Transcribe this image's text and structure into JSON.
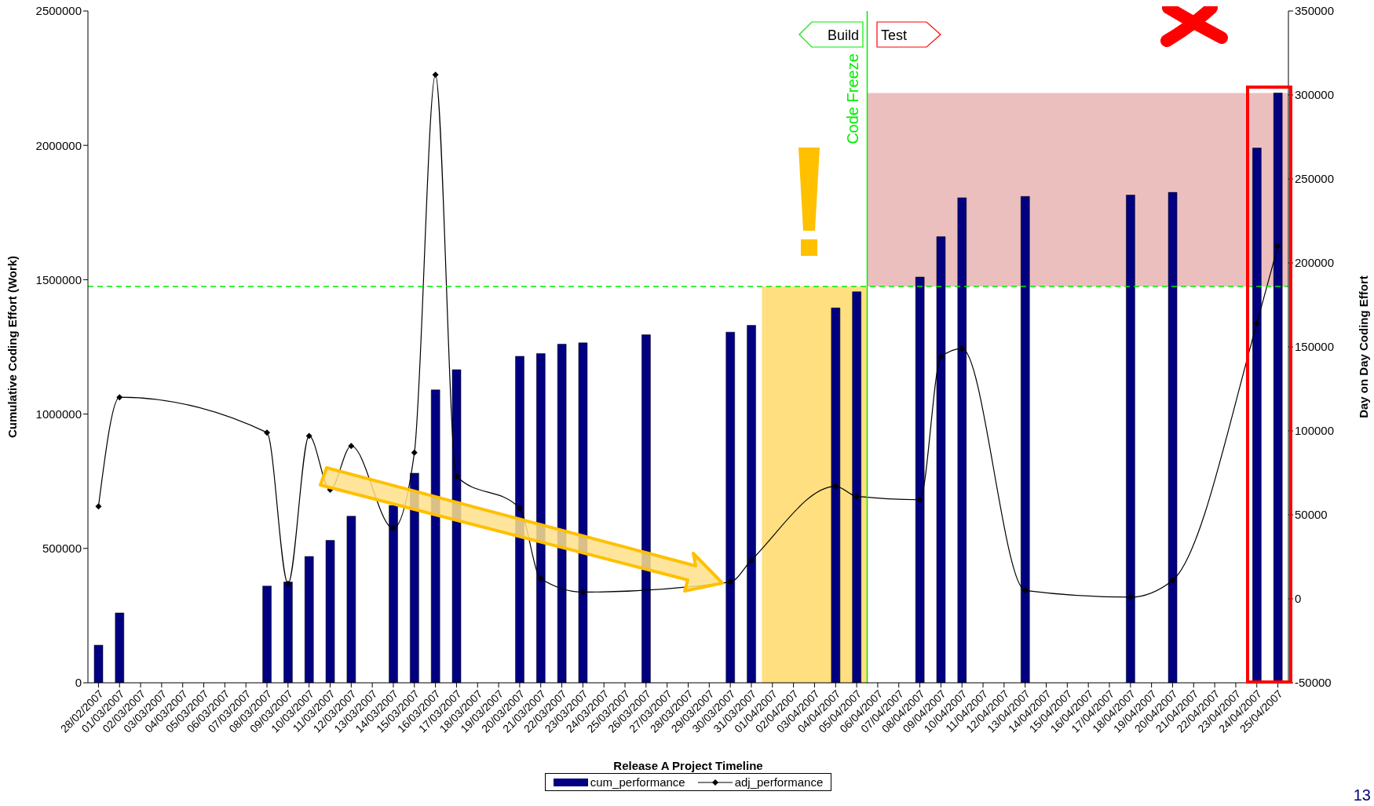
{
  "chart_data": {
    "type": "bar",
    "xlabel": "Release A Project Timeline",
    "ylabel": "Cumulative Coding Effort (Work)",
    "y2label": "Day on Day Coding Effort",
    "categories": [
      "28/02/2007",
      "01/03/2007",
      "02/03/2007",
      "03/03/2007",
      "04/03/2007",
      "05/03/2007",
      "06/03/2007",
      "07/03/2007",
      "08/03/2007",
      "09/03/2007",
      "10/03/2007",
      "11/03/2007",
      "12/03/2007",
      "13/03/2007",
      "14/03/2007",
      "15/03/2007",
      "16/03/2007",
      "17/03/2007",
      "18/03/2007",
      "19/03/2007",
      "20/03/2007",
      "21/03/2007",
      "22/03/2007",
      "23/03/2007",
      "24/03/2007",
      "25/03/2007",
      "26/03/2007",
      "27/03/2007",
      "28/03/2007",
      "29/03/2007",
      "30/03/2007",
      "31/03/2007",
      "01/04/2007",
      "02/04/2007",
      "03/04/2007",
      "04/04/2007",
      "05/04/2007",
      "06/04/2007",
      "07/04/2007",
      "08/04/2007",
      "09/04/2007",
      "10/04/2007",
      "11/04/2007",
      "12/04/2007",
      "13/04/2007",
      "14/04/2007",
      "15/04/2007",
      "16/04/2007",
      "17/04/2007",
      "18/04/2007",
      "19/04/2007",
      "20/04/2007",
      "21/04/2007",
      "22/04/2007",
      "23/04/2007",
      "24/04/2007",
      "25/04/2007"
    ],
    "series": [
      {
        "name": "cum_performance",
        "color": "#000080",
        "values": [
          140000,
          260000,
          null,
          null,
          null,
          null,
          null,
          null,
          360000,
          375000,
          470000,
          530000,
          620000,
          null,
          660000,
          780000,
          1090000,
          1165000,
          null,
          null,
          1215000,
          1225000,
          1260000,
          1265000,
          null,
          null,
          1295000,
          null,
          null,
          null,
          1305000,
          1330000,
          null,
          null,
          null,
          1395000,
          1455000,
          null,
          null,
          1510000,
          1660000,
          1805000,
          null,
          null,
          1810000,
          null,
          null,
          null,
          null,
          1815000,
          null,
          1825000,
          null,
          null,
          null,
          1990000,
          2195000
        ]
      },
      {
        "name": "adj_performance",
        "type": "line",
        "axis": "y2",
        "color": "#000000",
        "marker": "diamond",
        "line_style": "solid",
        "values": [
          55000,
          120000,
          null,
          null,
          null,
          null,
          null,
          null,
          99000,
          9000,
          97000,
          65000,
          91000,
          null,
          42000,
          87000,
          312000,
          73000,
          null,
          null,
          54000,
          12000,
          null,
          4000,
          null,
          null,
          null,
          null,
          null,
          null,
          10000,
          23000,
          null,
          null,
          null,
          67000,
          61000,
          null,
          null,
          59000,
          144000,
          149000,
          null,
          null,
          5000,
          null,
          null,
          null,
          null,
          1000,
          null,
          11000,
          null,
          null,
          null,
          164000,
          210000
        ]
      }
    ],
    "ylim": [
      0,
      2500000
    ],
    "yticks": [
      0,
      500000,
      1000000,
      1500000,
      2000000,
      2500000
    ],
    "y2lim": [
      -50000,
      350000
    ],
    "y2ticks": [
      -50000,
      0,
      50000,
      100000,
      150000,
      200000,
      250000,
      300000,
      350000
    ],
    "ref_lines": [
      {
        "axis": "y",
        "value": 1475000,
        "color": "#00ee00",
        "line_style": "dashed"
      },
      {
        "axis": "x",
        "value": "06/04/2007",
        "label": "Code Freeze",
        "color": "#00ee00",
        "line_style": "solid"
      }
    ],
    "bands": [
      {
        "axis": "x",
        "from": "01/04/2007",
        "to": "05/04/2007",
        "color": "#ffc000"
      },
      {
        "axis": "x",
        "from": "06/04/2007",
        "to": "25/04/2007",
        "color": "#d98080"
      }
    ],
    "annotations": [
      "Build",
      "Test",
      "13"
    ],
    "grid": false,
    "legend": "bottom"
  }
}
